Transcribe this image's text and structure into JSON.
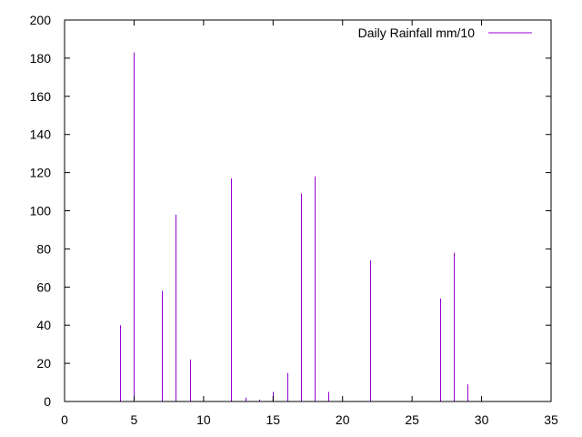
{
  "chart_data": {
    "type": "bar",
    "style": "impulses",
    "title": "",
    "xlabel": "",
    "ylabel": "",
    "xlim": [
      0,
      35
    ],
    "ylim": [
      0,
      200
    ],
    "xticks": [
      "0",
      "5",
      "10",
      "15",
      "20",
      "25",
      "30",
      "35"
    ],
    "yticks": [
      "0",
      "20",
      "40",
      "60",
      "80",
      "100",
      "120",
      "140",
      "160",
      "180",
      "200"
    ],
    "grid": false,
    "legend_position": "top-right",
    "series": [
      {
        "name": "Daily Rainfall mm/10",
        "color": "#9400d3",
        "x": [
          4,
          5,
          7,
          8,
          9,
          12,
          13,
          14,
          15,
          16,
          17,
          18,
          19,
          22,
          27,
          28,
          29
        ],
        "values": [
          40,
          183,
          58,
          98,
          22,
          117,
          2,
          1,
          5,
          15,
          109,
          118,
          5,
          74,
          54,
          78,
          9
        ]
      }
    ]
  }
}
